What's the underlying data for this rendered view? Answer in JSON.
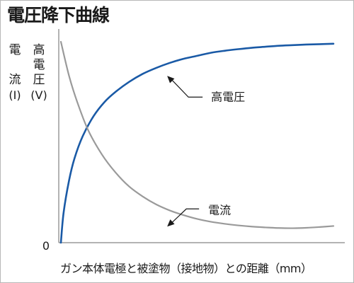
{
  "chart_data": {
    "type": "line",
    "title": "電圧降下曲線",
    "xlabel": "ガン本体電極と被塗物（接地物）との距離（mm）",
    "ylabel_left": [
      "電",
      "流",
      "(I)"
    ],
    "ylabel_right": [
      "高",
      "電",
      "圧",
      "(V)"
    ],
    "y_tick_labels": [
      "0"
    ],
    "xlim": [
      0,
      10
    ],
    "ylim": [
      0,
      100
    ],
    "series": [
      {
        "name": "高電圧",
        "color": "#1a5aa6",
        "x": [
          0,
          0.1,
          0.3,
          0.5,
          0.8,
          1.2,
          1.6,
          2.0,
          2.5,
          3.0,
          3.5,
          4.0,
          4.5,
          5.0,
          5.5,
          6.0,
          6.5,
          7.0,
          7.5,
          8.0,
          8.5,
          9.0,
          9.5,
          10.0
        ],
        "values": [
          0,
          15,
          31,
          42,
          53,
          63,
          70,
          75,
          80,
          84,
          87,
          89.5,
          91.5,
          93,
          94.5,
          95.5,
          96.3,
          97,
          97.5,
          98,
          98.3,
          98.6,
          98.8,
          99
        ]
      },
      {
        "name": "電流",
        "color": "#9a9a9a",
        "x": [
          0,
          0.3,
          0.6,
          1.0,
          1.5,
          2.0,
          2.5,
          3.0,
          3.5,
          4.0,
          4.5,
          5.0,
          5.5,
          6.0,
          6.5,
          7.0,
          7.5,
          8.0,
          8.5,
          9.0,
          9.5,
          10.0
        ],
        "values": [
          100,
          83,
          70,
          56,
          44,
          35,
          28,
          23,
          19,
          16,
          13.7,
          11.8,
          10.4,
          9.4,
          8.6,
          8.0,
          7.6,
          7.3,
          7.2,
          7.4,
          7.8,
          8.3
        ]
      }
    ],
    "annotations": [
      {
        "text": "高電圧",
        "series": "高電圧",
        "x": 3.9,
        "y": 83
      },
      {
        "text": "電流",
        "series": "電流",
        "x": 3.9,
        "y": 8
      }
    ],
    "grid": false,
    "legend": "none"
  }
}
